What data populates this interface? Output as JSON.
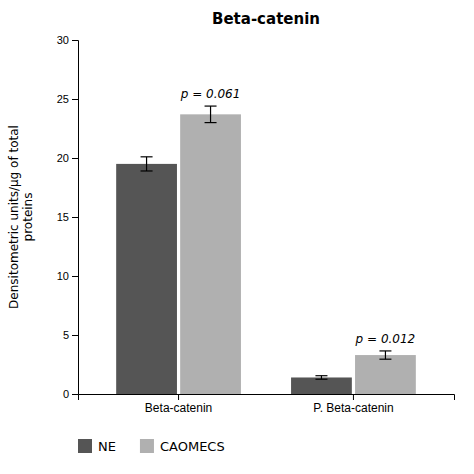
{
  "chart_data": {
    "type": "bar",
    "title": "Beta-catenin",
    "ylabel": "Densitometric units/μg of total\nproteins",
    "categories": [
      "Beta-catenin",
      "P. Beta-catenin"
    ],
    "series": [
      {
        "name": "NE",
        "color": "#555555",
        "values": [
          19.5,
          1.4
        ],
        "errors": [
          0.6,
          0.15
        ]
      },
      {
        "name": "CAOMECS",
        "color": "#b0b0b0",
        "values": [
          23.7,
          3.3
        ],
        "errors": [
          0.7,
          0.35
        ]
      }
    ],
    "annotations": [
      "p = 0.061",
      "p = 0.012"
    ],
    "ylim": [
      0,
      30
    ],
    "yticks": [
      0,
      5,
      10,
      15,
      20,
      25,
      30
    ],
    "grid": false,
    "legend": "bottom"
  }
}
